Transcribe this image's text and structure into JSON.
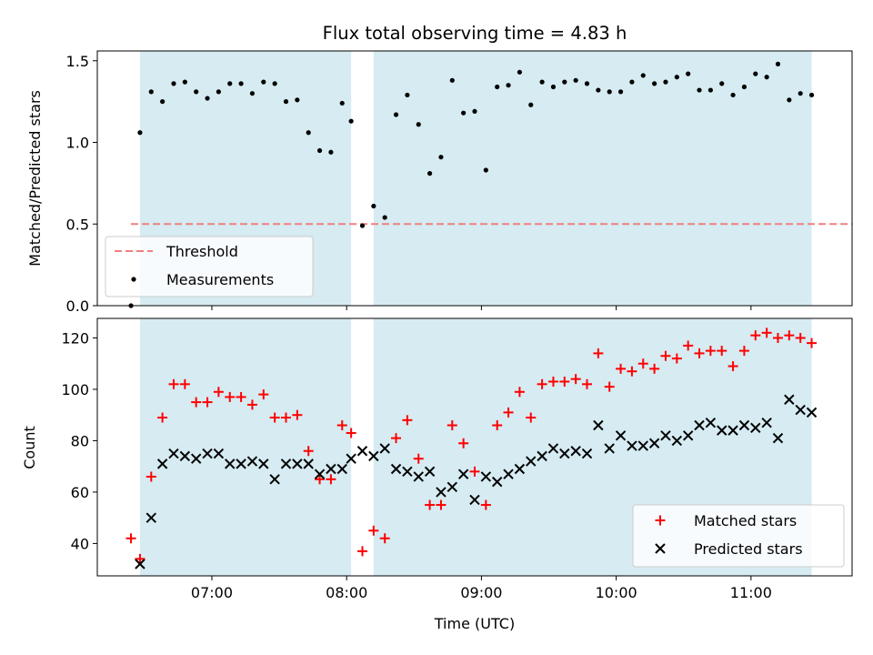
{
  "chart_data": [
    {
      "type": "scatter",
      "title": "Flux total observing time = 4.83 h",
      "xlabel": "",
      "ylabel": "Matched/Predicted stars",
      "ylim": [
        0,
        1.56
      ],
      "xlim": [
        "06:09",
        "11:45"
      ],
      "yticks": [
        0.0,
        0.5,
        1.0,
        1.5
      ],
      "ytick_labels": [
        "0.0",
        "0.5",
        "1.0",
        "1.5"
      ],
      "threshold": {
        "name": "Threshold",
        "value": 0.5,
        "x_range": [
          "06:24",
          "11:45"
        ],
        "color": "#f08080",
        "style": "dashed"
      },
      "shaded_spans": [
        [
          "06:28",
          "08:02"
        ],
        [
          "08:12",
          "11:27"
        ]
      ],
      "shade_color": "#add8e6",
      "legend": {
        "location": "lower-left",
        "entries": [
          "Threshold",
          "Measurements"
        ]
      },
      "series": [
        {
          "name": "Measurements",
          "color": "#000000",
          "marker": "dot",
          "points": [
            [
              "06:24",
              0.0
            ],
            [
              "06:28",
              1.06
            ],
            [
              "06:33",
              1.31
            ],
            [
              "06:38",
              1.25
            ],
            [
              "06:43",
              1.36
            ],
            [
              "06:48",
              1.37
            ],
            [
              "06:53",
              1.31
            ],
            [
              "06:58",
              1.27
            ],
            [
              "07:03",
              1.31
            ],
            [
              "07:08",
              1.36
            ],
            [
              "07:13",
              1.36
            ],
            [
              "07:18",
              1.3
            ],
            [
              "07:23",
              1.37
            ],
            [
              "07:28",
              1.36
            ],
            [
              "07:33",
              1.25
            ],
            [
              "07:38",
              1.26
            ],
            [
              "07:43",
              1.06
            ],
            [
              "07:48",
              0.95
            ],
            [
              "07:53",
              0.94
            ],
            [
              "07:58",
              1.24
            ],
            [
              "08:02",
              1.13
            ],
            [
              "08:07",
              0.49
            ],
            [
              "08:12",
              0.61
            ],
            [
              "08:17",
              0.54
            ],
            [
              "08:22",
              1.17
            ],
            [
              "08:27",
              1.29
            ],
            [
              "08:32",
              1.11
            ],
            [
              "08:37",
              0.81
            ],
            [
              "08:42",
              0.91
            ],
            [
              "08:47",
              1.38
            ],
            [
              "08:52",
              1.18
            ],
            [
              "08:57",
              1.19
            ],
            [
              "09:02",
              0.83
            ],
            [
              "09:07",
              1.34
            ],
            [
              "09:12",
              1.35
            ],
            [
              "09:17",
              1.43
            ],
            [
              "09:22",
              1.23
            ],
            [
              "09:27",
              1.37
            ],
            [
              "09:32",
              1.34
            ],
            [
              "09:37",
              1.37
            ],
            [
              "09:42",
              1.38
            ],
            [
              "09:47",
              1.36
            ],
            [
              "09:52",
              1.32
            ],
            [
              "09:57",
              1.31
            ],
            [
              "10:02",
              1.31
            ],
            [
              "10:07",
              1.37
            ],
            [
              "10:12",
              1.41
            ],
            [
              "10:17",
              1.36
            ],
            [
              "10:22",
              1.37
            ],
            [
              "10:27",
              1.4
            ],
            [
              "10:32",
              1.42
            ],
            [
              "10:37",
              1.32
            ],
            [
              "10:42",
              1.32
            ],
            [
              "10:47",
              1.36
            ],
            [
              "10:52",
              1.29
            ],
            [
              "10:57",
              1.34
            ],
            [
              "11:02",
              1.42
            ],
            [
              "11:07",
              1.4
            ],
            [
              "11:12",
              1.48
            ],
            [
              "11:17",
              1.26
            ],
            [
              "11:22",
              1.3
            ],
            [
              "11:27",
              1.29
            ]
          ]
        }
      ]
    },
    {
      "type": "scatter",
      "title": "",
      "xlabel": "Time (UTC)",
      "ylabel": "Count",
      "ylim": [
        27.4,
        127.6
      ],
      "xlim": [
        "06:09",
        "11:45"
      ],
      "yticks": [
        40,
        60,
        80,
        100,
        120
      ],
      "ytick_labels": [
        "40",
        "60",
        "80",
        "100",
        "120"
      ],
      "xticks": [
        "07:00",
        "08:00",
        "09:00",
        "10:00",
        "11:00"
      ],
      "xtick_labels": [
        "07:00",
        "08:00",
        "09:00",
        "10:00",
        "11:00"
      ],
      "shaded_spans": [
        [
          "06:28",
          "08:02"
        ],
        [
          "08:12",
          "11:27"
        ]
      ],
      "shade_color": "#add8e6",
      "legend": {
        "location": "lower-right",
        "entries": [
          "Matched stars",
          "Predicted stars"
        ]
      },
      "series": [
        {
          "name": "Matched stars",
          "color": "#ff0000",
          "marker": "plus",
          "points": [
            [
              "06:24",
              42
            ],
            [
              "06:28",
              34
            ],
            [
              "06:33",
              66
            ],
            [
              "06:38",
              89
            ],
            [
              "06:43",
              102
            ],
            [
              "06:48",
              102
            ],
            [
              "06:53",
              95
            ],
            [
              "06:58",
              95
            ],
            [
              "07:03",
              99
            ],
            [
              "07:08",
              97
            ],
            [
              "07:13",
              97
            ],
            [
              "07:18",
              94
            ],
            [
              "07:23",
              98
            ],
            [
              "07:28",
              89
            ],
            [
              "07:33",
              89
            ],
            [
              "07:38",
              90
            ],
            [
              "07:43",
              76
            ],
            [
              "07:48",
              65
            ],
            [
              "07:53",
              65
            ],
            [
              "07:58",
              86
            ],
            [
              "08:02",
              83
            ],
            [
              "08:07",
              37
            ],
            [
              "08:12",
              45
            ],
            [
              "08:17",
              42
            ],
            [
              "08:22",
              81
            ],
            [
              "08:27",
              88
            ],
            [
              "08:32",
              73
            ],
            [
              "08:37",
              55
            ],
            [
              "08:42",
              55
            ],
            [
              "08:47",
              86
            ],
            [
              "08:52",
              79
            ],
            [
              "08:57",
              68
            ],
            [
              "09:02",
              55
            ],
            [
              "09:07",
              86
            ],
            [
              "09:12",
              91
            ],
            [
              "09:17",
              99
            ],
            [
              "09:22",
              89
            ],
            [
              "09:27",
              102
            ],
            [
              "09:32",
              103
            ],
            [
              "09:37",
              103
            ],
            [
              "09:42",
              104
            ],
            [
              "09:47",
              102
            ],
            [
              "09:52",
              114
            ],
            [
              "09:57",
              101
            ],
            [
              "10:02",
              108
            ],
            [
              "10:07",
              107
            ],
            [
              "10:12",
              110
            ],
            [
              "10:17",
              108
            ],
            [
              "10:22",
              113
            ],
            [
              "10:27",
              112
            ],
            [
              "10:32",
              117
            ],
            [
              "10:37",
              114
            ],
            [
              "10:42",
              115
            ],
            [
              "10:47",
              115
            ],
            [
              "10:52",
              109
            ],
            [
              "10:57",
              115
            ],
            [
              "11:02",
              121
            ],
            [
              "11:07",
              122
            ],
            [
              "11:12",
              120
            ],
            [
              "11:17",
              121
            ],
            [
              "11:22",
              120
            ],
            [
              "11:27",
              118
            ]
          ]
        },
        {
          "name": "Predicted stars",
          "color": "#000000",
          "marker": "x",
          "points": [
            [
              "06:28",
              32
            ],
            [
              "06:33",
              50
            ],
            [
              "06:38",
              71
            ],
            [
              "06:43",
              75
            ],
            [
              "06:48",
              74
            ],
            [
              "06:53",
              73
            ],
            [
              "06:58",
              75
            ],
            [
              "07:03",
              75
            ],
            [
              "07:08",
              71
            ],
            [
              "07:13",
              71
            ],
            [
              "07:18",
              72
            ],
            [
              "07:23",
              71
            ],
            [
              "07:28",
              65
            ],
            [
              "07:33",
              71
            ],
            [
              "07:38",
              71
            ],
            [
              "07:43",
              71
            ],
            [
              "07:48",
              67
            ],
            [
              "07:53",
              69
            ],
            [
              "07:58",
              69
            ],
            [
              "08:02",
              73
            ],
            [
              "08:07",
              76
            ],
            [
              "08:12",
              74
            ],
            [
              "08:17",
              77
            ],
            [
              "08:22",
              69
            ],
            [
              "08:27",
              68
            ],
            [
              "08:32",
              66
            ],
            [
              "08:37",
              68
            ],
            [
              "08:42",
              60
            ],
            [
              "08:47",
              62
            ],
            [
              "08:52",
              67
            ],
            [
              "08:57",
              57
            ],
            [
              "09:02",
              66
            ],
            [
              "09:07",
              64
            ],
            [
              "09:12",
              67
            ],
            [
              "09:17",
              69
            ],
            [
              "09:22",
              72
            ],
            [
              "09:27",
              74
            ],
            [
              "09:32",
              77
            ],
            [
              "09:37",
              75
            ],
            [
              "09:42",
              76
            ],
            [
              "09:47",
              75
            ],
            [
              "09:52",
              86
            ],
            [
              "09:57",
              77
            ],
            [
              "10:02",
              82
            ],
            [
              "10:07",
              78
            ],
            [
              "10:12",
              78
            ],
            [
              "10:17",
              79
            ],
            [
              "10:22",
              82
            ],
            [
              "10:27",
              80
            ],
            [
              "10:32",
              82
            ],
            [
              "10:37",
              86
            ],
            [
              "10:42",
              87
            ],
            [
              "10:47",
              84
            ],
            [
              "10:52",
              84
            ],
            [
              "10:57",
              86
            ],
            [
              "11:02",
              85
            ],
            [
              "11:07",
              87
            ],
            [
              "11:12",
              81
            ],
            [
              "11:17",
              96
            ],
            [
              "11:22",
              92
            ],
            [
              "11:27",
              91
            ]
          ]
        }
      ]
    }
  ]
}
